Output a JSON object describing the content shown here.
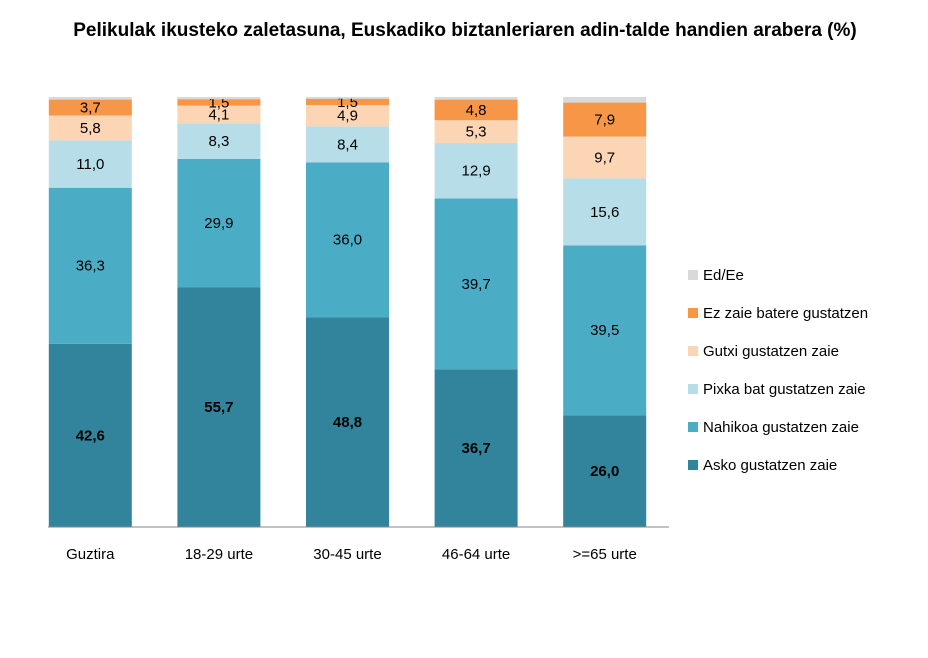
{
  "chart_data": {
    "type": "stacked-bar",
    "title": "Pelikulak ikusteko zaletasuna, Euskadiko biztanleriaren adin-talde handien arabera (%)",
    "categories": [
      "Guztira",
      "18-29 urte",
      "30-45 urte",
      "46-64 urte",
      ">=65 urte"
    ],
    "ylim": [
      0,
      100
    ],
    "series": [
      {
        "name": "Asko gustatzen zaie",
        "color": "#31849b",
        "values": [
          42.6,
          55.7,
          48.8,
          36.7,
          26.0
        ],
        "value_labels": [
          "42,6",
          "55,7",
          "48,8",
          "36,7",
          "26,0"
        ]
      },
      {
        "name": "Nahikoa gustatzen zaie",
        "color": "#4bacc6",
        "values": [
          36.3,
          29.9,
          36.0,
          39.7,
          39.5
        ],
        "value_labels": [
          "36,3",
          "29,9",
          "36,0",
          "39,7",
          "39,5"
        ]
      },
      {
        "name": "Pixka bat gustatzen zaie",
        "color": "#b7dee8",
        "values": [
          11.0,
          8.3,
          8.4,
          12.9,
          15.6
        ],
        "value_labels": [
          "11,0",
          "8,3",
          "8,4",
          "12,9",
          "15,6"
        ]
      },
      {
        "name": "Gutxi gustatzen zaie",
        "color": "#fcd5b5",
        "values": [
          5.8,
          4.1,
          4.9,
          5.3,
          9.7
        ],
        "value_labels": [
          "5,8",
          "4,1",
          "4,9",
          "5,3",
          "9,7"
        ]
      },
      {
        "name": "Ez zaie batere gustatzen",
        "color": "#f79646",
        "values": [
          3.7,
          1.5,
          1.5,
          4.8,
          7.9
        ],
        "value_labels": [
          "3,7",
          "1,5",
          "1,5",
          "4,8",
          "7,9"
        ]
      },
      {
        "name": "Ed/Ee",
        "color": "#d9d9d9",
        "values": [
          0.6,
          0.5,
          0.4,
          0.6,
          1.3
        ]
      }
    ]
  }
}
